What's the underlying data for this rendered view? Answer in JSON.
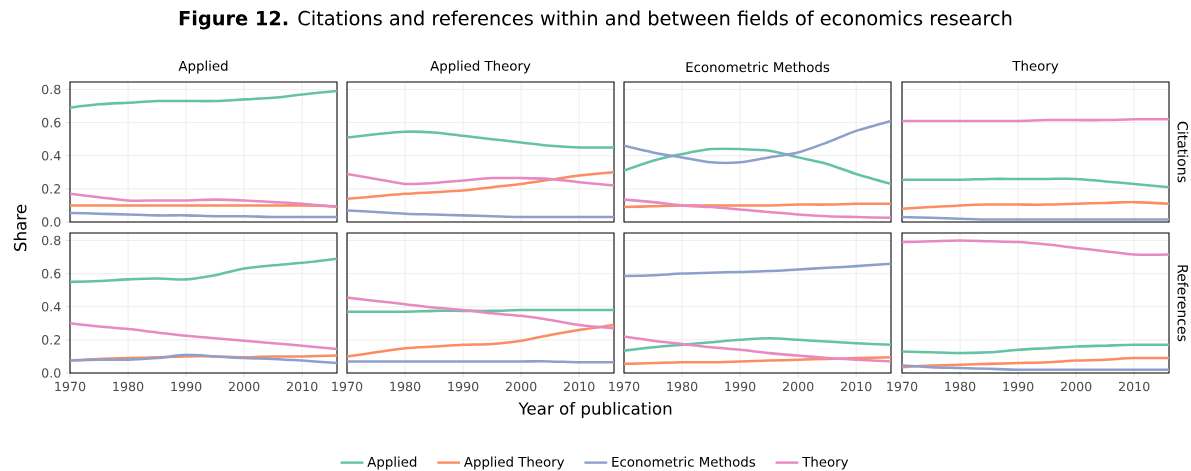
{
  "chart_data": [
    {
      "type": "line",
      "title": "**Figure 12.** Citations and references within and between fields of economics research",
      "subtitle": "Applied",
      "ylabel": "Share",
      "tick_labels": "y",
      "grid": true,
      "x": [
        1970,
        1975,
        1980,
        1985,
        1990,
        1995,
        2000,
        2005,
        2010,
        2016
      ],
      "xlim": [
        1970,
        2016
      ],
      "ylim": [
        0,
        0.845
      ],
      "xticks": [
        1970,
        1980,
        1990,
        2000,
        2010
      ],
      "yticks": [
        {
          "value": 0,
          "label": "0.0"
        },
        {
          "value": 0.2,
          "label": "0.2"
        },
        {
          "value": 0.4,
          "label": "0.4"
        },
        {
          "value": 0.6,
          "label": "0.6"
        },
        {
          "value": 0.8,
          "label": "0.8"
        }
      ],
      "series": [
        {
          "color": "#66c2a5",
          "values": [
            0.69,
            0.71,
            0.72,
            0.73,
            0.73,
            0.73,
            0.74,
            0.75,
            0.77,
            0.79
          ]
        },
        {
          "color": "#fc8d62",
          "values": [
            0.1,
            0.1,
            0.1,
            0.1,
            0.1,
            0.1,
            0.1,
            0.1,
            0.1,
            0.095
          ]
        },
        {
          "color": "#8da0cb",
          "values": [
            0.055,
            0.05,
            0.045,
            0.04,
            0.04,
            0.035,
            0.035,
            0.03,
            0.03,
            0.03
          ]
        },
        {
          "color": "#e78ac3",
          "values": [
            0.17,
            0.15,
            0.13,
            0.13,
            0.13,
            0.135,
            0.13,
            0.12,
            0.11,
            0.09
          ]
        }
      ]
    },
    {
      "type": "line",
      "subtitle": "Applied Theory",
      "tick_labels": false,
      "grid": true,
      "x": [
        1970,
        1975,
        1980,
        1985,
        1990,
        1995,
        2000,
        2005,
        2010,
        2016
      ],
      "xlim": [
        1970,
        2016
      ],
      "ylim": [
        0,
        0.845
      ],
      "xticks": [
        1970,
        1980,
        1990,
        2000,
        2010
      ],
      "yticks": [
        {
          "value": 0,
          "label": null
        },
        {
          "value": 0.2,
          "label": null
        },
        {
          "value": 0.4,
          "label": null
        },
        {
          "value": 0.6,
          "label": null
        },
        {
          "value": 0.8,
          "label": null
        }
      ],
      "series": [
        {
          "color": "#66c2a5",
          "values": [
            0.51,
            0.53,
            0.545,
            0.54,
            0.52,
            0.5,
            0.48,
            0.46,
            0.45,
            0.45
          ]
        },
        {
          "color": "#fc8d62",
          "values": [
            0.14,
            0.155,
            0.17,
            0.18,
            0.19,
            0.21,
            0.23,
            0.255,
            0.28,
            0.3
          ]
        },
        {
          "color": "#8da0cb",
          "values": [
            0.07,
            0.06,
            0.05,
            0.045,
            0.04,
            0.035,
            0.03,
            0.03,
            0.03,
            0.03
          ]
        },
        {
          "color": "#e78ac3",
          "values": [
            0.29,
            0.26,
            0.23,
            0.235,
            0.25,
            0.265,
            0.265,
            0.26,
            0.24,
            0.22
          ]
        }
      ]
    },
    {
      "type": "line",
      "subtitle": "Econometric Methods",
      "tick_labels": false,
      "grid": true,
      "x": [
        1970,
        1975,
        1980,
        1985,
        1990,
        1995,
        2000,
        2005,
        2010,
        2016
      ],
      "xlim": [
        1970,
        2016
      ],
      "ylim": [
        0,
        0.845
      ],
      "xticks": [
        1970,
        1980,
        1990,
        2000,
        2010
      ],
      "yticks": [
        {
          "value": 0,
          "label": null
        },
        {
          "value": 0.2,
          "label": null
        },
        {
          "value": 0.4,
          "label": null
        },
        {
          "value": 0.6,
          "label": null
        },
        {
          "value": 0.8,
          "label": null
        }
      ],
      "series": [
        {
          "color": "#66c2a5",
          "values": [
            0.31,
            0.37,
            0.41,
            0.44,
            0.44,
            0.43,
            0.39,
            0.35,
            0.29,
            0.23
          ]
        },
        {
          "color": "#fc8d62",
          "values": [
            0.09,
            0.095,
            0.1,
            0.1,
            0.1,
            0.1,
            0.105,
            0.105,
            0.11,
            0.11
          ]
        },
        {
          "color": "#8da0cb",
          "values": [
            0.46,
            0.42,
            0.39,
            0.36,
            0.36,
            0.39,
            0.42,
            0.48,
            0.55,
            0.61
          ]
        },
        {
          "color": "#e78ac3",
          "values": [
            0.135,
            0.12,
            0.1,
            0.09,
            0.075,
            0.06,
            0.045,
            0.035,
            0.03,
            0.025
          ]
        }
      ]
    },
    {
      "type": "line",
      "subtitle": "Theory",
      "y2label": "Citations",
      "tick_labels": false,
      "grid": true,
      "x": [
        1970,
        1975,
        1980,
        1985,
        1990,
        1995,
        2000,
        2005,
        2010,
        2016
      ],
      "xlim": [
        1970,
        2016
      ],
      "ylim": [
        0,
        0.845
      ],
      "xticks": [
        1970,
        1980,
        1990,
        2000,
        2010
      ],
      "yticks": [
        {
          "value": 0,
          "label": null
        },
        {
          "value": 0.2,
          "label": null
        },
        {
          "value": 0.4,
          "label": null
        },
        {
          "value": 0.6,
          "label": null
        },
        {
          "value": 0.8,
          "label": null
        }
      ],
      "series": [
        {
          "color": "#66c2a5",
          "values": [
            0.255,
            0.255,
            0.255,
            0.26,
            0.26,
            0.26,
            0.26,
            0.245,
            0.23,
            0.21
          ]
        },
        {
          "color": "#fc8d62",
          "values": [
            0.08,
            0.09,
            0.1,
            0.105,
            0.105,
            0.105,
            0.11,
            0.115,
            0.12,
            0.11
          ]
        },
        {
          "color": "#8da0cb",
          "values": [
            0.03,
            0.025,
            0.02,
            0.015,
            0.015,
            0.015,
            0.015,
            0.015,
            0.015,
            0.015
          ]
        },
        {
          "color": "#e78ac3",
          "values": [
            0.61,
            0.61,
            0.61,
            0.61,
            0.61,
            0.615,
            0.615,
            0.615,
            0.62,
            0.62
          ]
        }
      ]
    },
    {
      "type": "line",
      "grid": true,
      "x": [
        1970,
        1975,
        1980,
        1985,
        1990,
        1995,
        2000,
        2005,
        2010,
        2016
      ],
      "xlim": [
        1970,
        2016
      ],
      "ylim": [
        0,
        0.845
      ],
      "xticks": [
        1970,
        1980,
        1990,
        2000,
        2010
      ],
      "yticks": [
        {
          "value": 0,
          "label": "0.0"
        },
        {
          "value": 0.2,
          "label": "0.2"
        },
        {
          "value": 0.4,
          "label": "0.4"
        },
        {
          "value": 0.6,
          "label": "0.6"
        },
        {
          "value": 0.8,
          "label": "0.8"
        }
      ],
      "series": [
        {
          "color": "#66c2a5",
          "values": [
            0.55,
            0.555,
            0.565,
            0.57,
            0.565,
            0.59,
            0.63,
            0.65,
            0.665,
            0.69
          ]
        },
        {
          "color": "#fc8d62",
          "values": [
            0.075,
            0.085,
            0.09,
            0.095,
            0.1,
            0.1,
            0.095,
            0.1,
            0.1,
            0.105
          ]
        },
        {
          "color": "#8da0cb",
          "values": [
            0.075,
            0.08,
            0.08,
            0.09,
            0.11,
            0.1,
            0.09,
            0.085,
            0.075,
            0.06
          ]
        },
        {
          "color": "#e78ac3",
          "values": [
            0.3,
            0.28,
            0.265,
            0.245,
            0.225,
            0.21,
            0.195,
            0.18,
            0.165,
            0.145
          ]
        }
      ]
    },
    {
      "type": "line",
      "xlabel": "Year of publication",
      "tick_labels": "x",
      "grid": true,
      "legend": "bottom",
      "x": [
        1970,
        1975,
        1980,
        1985,
        1990,
        1995,
        2000,
        2005,
        2010,
        2016
      ],
      "xlim": [
        1970,
        2016
      ],
      "ylim": [
        0,
        0.845
      ],
      "xticks": [
        1970,
        1980,
        1990,
        2000,
        2010
      ],
      "yticks": [
        {
          "value": 0,
          "label": null
        },
        {
          "value": 0.2,
          "label": null
        },
        {
          "value": 0.4,
          "label": null
        },
        {
          "value": 0.6,
          "label": null
        },
        {
          "value": 0.8,
          "label": null
        }
      ],
      "series": [
        {
          "name": "Applied",
          "color": "#66c2a5",
          "values": [
            0.37,
            0.37,
            0.37,
            0.375,
            0.375,
            0.375,
            0.38,
            0.38,
            0.38,
            0.38
          ]
        },
        {
          "name": "Applied Theory",
          "color": "#fc8d62",
          "values": [
            0.1,
            0.125,
            0.15,
            0.16,
            0.17,
            0.175,
            0.195,
            0.23,
            0.26,
            0.29
          ]
        },
        {
          "name": "Econometric Methods",
          "color": "#8da0cb",
          "values": [
            0.07,
            0.07,
            0.07,
            0.07,
            0.07,
            0.07,
            0.07,
            0.07,
            0.065,
            0.065
          ]
        },
        {
          "name": "Theory",
          "color": "#e78ac3",
          "values": [
            0.455,
            0.435,
            0.415,
            0.395,
            0.38,
            0.36,
            0.345,
            0.32,
            0.29,
            0.27
          ]
        }
      ]
    },
    {
      "type": "line",
      "tick_labels": "x",
      "grid": true,
      "x": [
        1970,
        1975,
        1980,
        1985,
        1990,
        1995,
        2000,
        2005,
        2010,
        2016
      ],
      "xlim": [
        1970,
        2016
      ],
      "ylim": [
        0,
        0.845
      ],
      "xticks": [
        1970,
        1980,
        1990,
        2000,
        2010
      ],
      "yticks": [
        {
          "value": 0,
          "label": null
        },
        {
          "value": 0.2,
          "label": null
        },
        {
          "value": 0.4,
          "label": null
        },
        {
          "value": 0.6,
          "label": null
        },
        {
          "value": 0.8,
          "label": null
        }
      ],
      "series": [
        {
          "color": "#66c2a5",
          "values": [
            0.135,
            0.155,
            0.17,
            0.185,
            0.2,
            0.21,
            0.2,
            0.19,
            0.18,
            0.17
          ]
        },
        {
          "color": "#fc8d62",
          "values": [
            0.055,
            0.06,
            0.065,
            0.065,
            0.07,
            0.075,
            0.08,
            0.085,
            0.09,
            0.095
          ]
        },
        {
          "color": "#8da0cb",
          "values": [
            0.585,
            0.59,
            0.6,
            0.605,
            0.61,
            0.615,
            0.625,
            0.635,
            0.645,
            0.66
          ]
        },
        {
          "color": "#e78ac3",
          "values": [
            0.22,
            0.195,
            0.175,
            0.155,
            0.14,
            0.12,
            0.105,
            0.09,
            0.08,
            0.07
          ]
        }
      ]
    },
    {
      "type": "line",
      "y2label": "References",
      "tick_labels": "x",
      "grid": true,
      "x": [
        1970,
        1975,
        1980,
        1985,
        1990,
        1995,
        2000,
        2005,
        2010,
        2016
      ],
      "xlim": [
        1970,
        2016
      ],
      "ylim": [
        0,
        0.845
      ],
      "xticks": [
        1970,
        1980,
        1990,
        2000,
        2010
      ],
      "yticks": [
        {
          "value": 0,
          "label": null
        },
        {
          "value": 0.2,
          "label": null
        },
        {
          "value": 0.4,
          "label": null
        },
        {
          "value": 0.6,
          "label": null
        },
        {
          "value": 0.8,
          "label": null
        }
      ],
      "series": [
        {
          "color": "#66c2a5",
          "values": [
            0.13,
            0.125,
            0.12,
            0.125,
            0.14,
            0.15,
            0.16,
            0.165,
            0.17,
            0.17
          ]
        },
        {
          "color": "#fc8d62",
          "values": [
            0.035,
            0.045,
            0.05,
            0.055,
            0.06,
            0.065,
            0.075,
            0.08,
            0.09,
            0.09
          ]
        },
        {
          "color": "#8da0cb",
          "values": [
            0.045,
            0.035,
            0.03,
            0.025,
            0.02,
            0.02,
            0.02,
            0.02,
            0.02,
            0.02
          ]
        },
        {
          "color": "#e78ac3",
          "values": [
            0.79,
            0.795,
            0.8,
            0.795,
            0.79,
            0.775,
            0.755,
            0.735,
            0.715,
            0.715
          ]
        }
      ]
    }
  ]
}
